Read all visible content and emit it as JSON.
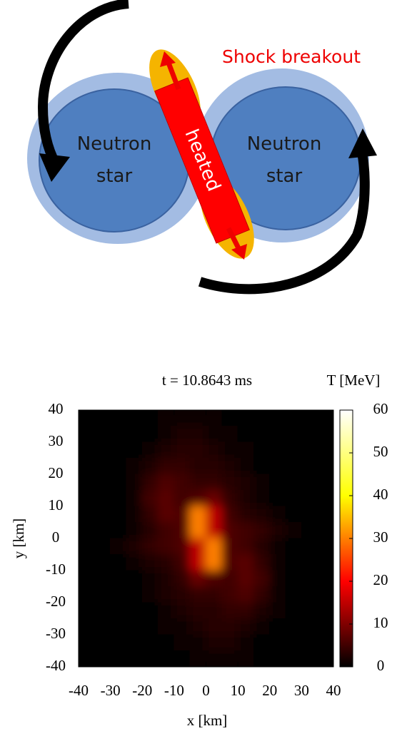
{
  "diagram": {
    "shock_label": "Shock breakout",
    "heated_label": "heated",
    "left_star": [
      "Neutron",
      "star"
    ],
    "right_star": [
      "Neutron",
      "star"
    ]
  },
  "chart_data": {
    "type": "heatmap",
    "annotation": "t = 10.8643 ms",
    "colorbar_title": "T [MeV]",
    "xlabel": "x [km]",
    "ylabel": "y [km]",
    "xlim": [
      -40,
      40
    ],
    "ylim": [
      -40,
      40
    ],
    "xticks": [
      -40,
      -30,
      -20,
      -10,
      0,
      10,
      20,
      30,
      40
    ],
    "yticks": [
      -40,
      -30,
      -20,
      -10,
      0,
      10,
      20,
      30,
      40
    ],
    "clim": [
      0,
      60
    ],
    "cticks": [
      0,
      10,
      20,
      30,
      40,
      50,
      60
    ],
    "colorscale": [
      "#000000",
      "#ff0000",
      "#ffff00",
      "#ffffff"
    ],
    "x": [
      -37.5,
      -32.5,
      -27.5,
      -22.5,
      -17.5,
      -12.5,
      -7.5,
      -2.5,
      2.5,
      7.5,
      12.5,
      17.5,
      22.5,
      27.5,
      32.5,
      37.5
    ],
    "y": [
      37.5,
      32.5,
      27.5,
      22.5,
      17.5,
      12.5,
      7.5,
      2.5,
      -2.5,
      -7.5,
      -12.5,
      -17.5,
      -22.5,
      -27.5,
      -32.5,
      -37.5
    ],
    "z": [
      [
        0,
        0,
        0,
        0,
        0,
        1,
        1,
        1,
        1,
        0,
        0,
        0,
        0,
        0,
        0,
        0
      ],
      [
        0,
        0,
        0,
        0,
        0,
        1,
        2,
        2,
        1,
        1,
        0,
        0,
        0,
        0,
        0,
        0
      ],
      [
        0,
        0,
        0,
        0,
        1,
        2,
        3,
        3,
        2,
        1,
        1,
        0,
        0,
        0,
        0,
        0
      ],
      [
        0,
        0,
        0,
        1,
        2,
        4,
        4,
        3,
        3,
        2,
        1,
        0,
        0,
        0,
        0,
        0
      ],
      [
        0,
        0,
        0,
        1,
        4,
        6,
        5,
        4,
        4,
        3,
        2,
        1,
        0,
        0,
        0,
        0
      ],
      [
        0,
        0,
        0,
        1,
        5,
        7,
        5,
        6,
        8,
        4,
        2,
        1,
        0,
        0,
        0,
        0
      ],
      [
        0,
        0,
        0,
        1,
        4,
        7,
        6,
        30,
        15,
        5,
        3,
        2,
        1,
        0,
        0,
        0
      ],
      [
        0,
        0,
        0,
        1,
        3,
        5,
        6,
        30,
        15,
        6,
        5,
        4,
        2,
        1,
        0,
        0
      ],
      [
        0,
        0,
        1,
        2,
        4,
        5,
        6,
        15,
        30,
        6,
        5,
        3,
        1,
        0,
        0,
        0
      ],
      [
        0,
        0,
        0,
        1,
        2,
        3,
        5,
        15,
        30,
        6,
        7,
        4,
        1,
        0,
        0,
        0
      ],
      [
        0,
        0,
        0,
        0,
        1,
        2,
        4,
        8,
        6,
        5,
        7,
        5,
        1,
        0,
        0,
        0
      ],
      [
        0,
        0,
        0,
        0,
        1,
        2,
        3,
        4,
        4,
        5,
        6,
        4,
        1,
        0,
        0,
        0
      ],
      [
        0,
        0,
        0,
        0,
        0,
        1,
        2,
        3,
        3,
        4,
        4,
        2,
        1,
        0,
        0,
        0
      ],
      [
        0,
        0,
        0,
        0,
        0,
        1,
        1,
        2,
        3,
        3,
        2,
        1,
        0,
        0,
        0,
        0
      ],
      [
        0,
        0,
        0,
        0,
        0,
        0,
        1,
        1,
        2,
        2,
        1,
        0,
        0,
        0,
        0,
        0
      ],
      [
        0,
        0,
        0,
        0,
        0,
        0,
        0,
        1,
        1,
        1,
        1,
        0,
        0,
        0,
        0,
        0
      ]
    ]
  }
}
